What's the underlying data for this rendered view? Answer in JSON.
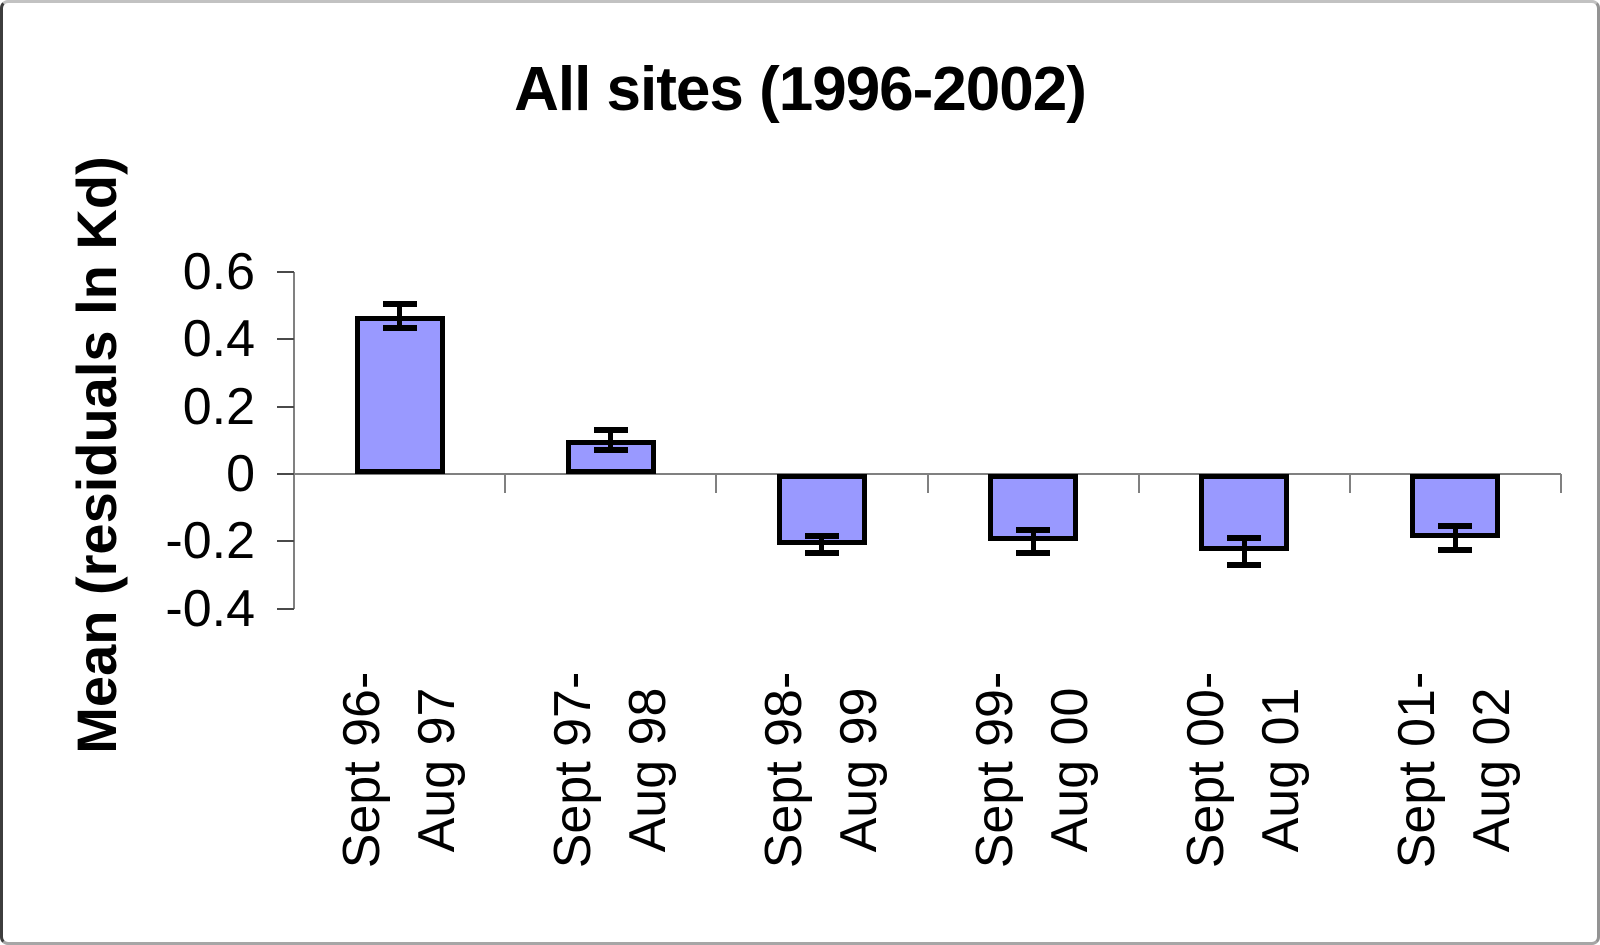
{
  "chart_data": {
    "type": "bar",
    "title": "All sites (1996-2002)",
    "ylabel": "Mean (residuals ln Kd)",
    "xlabel": "",
    "categories": [
      "Sept 96-\nAug 97",
      "Sept 97-\nAug 98",
      "Sept 98-\nAug 99",
      "Sept 99-\nAug 00",
      "Sept 00-\nAug 01",
      "Sept 01-\nAug 02"
    ],
    "values": [
      0.47,
      0.1,
      -0.21,
      -0.2,
      -0.23,
      -0.19
    ],
    "errors": [
      0.035,
      0.03,
      0.025,
      0.035,
      0.04,
      0.035
    ],
    "ytick_labels": [
      "0.6",
      "0.4",
      "0.2",
      "0",
      "-0.2",
      "-0.4"
    ],
    "ylim": [
      -0.4,
      0.6
    ],
    "grid": false,
    "legend": false,
    "colors": {
      "bar_fill": "#9999FF",
      "bar_border": "#000000",
      "error_bar": "#000000",
      "axis_line": "#808080",
      "tick_mark": "#4a4a4a",
      "text": "#000000"
    }
  }
}
